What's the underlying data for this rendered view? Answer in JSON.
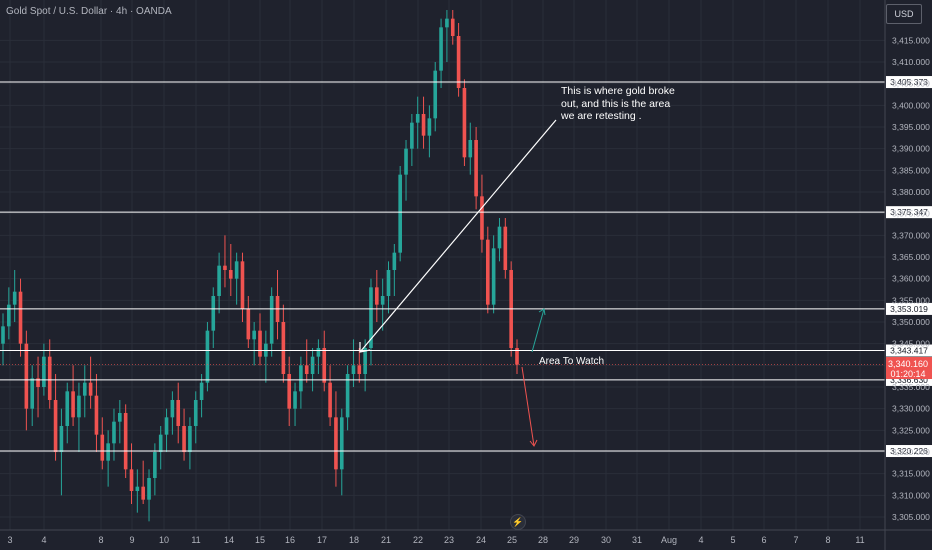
{
  "header": {
    "symbol": "Gold Spot / U.S. Dollar · 4h · OANDA",
    "currency": "USD"
  },
  "colors": {
    "background": "#1f222d",
    "up": "#26a69a",
    "down": "#ef5350",
    "level_line": "#ffffff",
    "grid": "#2a2e39",
    "axis_text": "#b2b5be"
  },
  "annotations": {
    "breakout_note": "This is where gold broke out, and this is the area we are retesting .",
    "area_label": "Area To Watch"
  },
  "live_price": {
    "price": "3,340.160",
    "countdown": "01:20:14"
  },
  "chart_data": {
    "type": "candlestick",
    "ylim": [
      3302,
      3422
    ],
    "y_ticks": [
      3305,
      3310,
      3315,
      3320,
      3325,
      3330,
      3335,
      3340,
      3345,
      3350,
      3355,
      3360,
      3365,
      3370,
      3375,
      3380,
      3385,
      3390,
      3395,
      3400,
      3405,
      3410,
      3415
    ],
    "x_ticks": [
      "3",
      "4",
      "8",
      "9",
      "10",
      "11",
      "14",
      "15",
      "16",
      "17",
      "18",
      "21",
      "22",
      "23",
      "24",
      "25",
      "28",
      "29",
      "30",
      "31",
      "Aug",
      "4",
      "5",
      "6",
      "7",
      "8",
      "11"
    ],
    "horizontal_levels": [
      {
        "label": "3,405.373",
        "value": 3405.373
      },
      {
        "label": "3,375.347",
        "value": 3375.347
      },
      {
        "label": "3,353.019",
        "value": 3353.019
      },
      {
        "label": "3,343.417",
        "value": 3343.417
      },
      {
        "label": "3,336.630",
        "value": 3336.63
      },
      {
        "label": "3,320.226",
        "value": 3320.226
      }
    ],
    "candles": [
      [
        3345,
        3352,
        3340,
        3349
      ],
      [
        3349,
        3358,
        3346,
        3354
      ],
      [
        3354,
        3362,
        3350,
        3357
      ],
      [
        3357,
        3360,
        3342,
        3345
      ],
      [
        3345,
        3348,
        3325,
        3330
      ],
      [
        3330,
        3340,
        3326,
        3337
      ],
      [
        3337,
        3342,
        3328,
        3335
      ],
      [
        3335,
        3345,
        3333,
        3342
      ],
      [
        3342,
        3346,
        3330,
        3332
      ],
      [
        3332,
        3338,
        3318,
        3320
      ],
      [
        3320,
        3330,
        3310,
        3326
      ],
      [
        3326,
        3336,
        3322,
        3334
      ],
      [
        3334,
        3340,
        3326,
        3328
      ],
      [
        3328,
        3336,
        3320,
        3333
      ],
      [
        3333,
        3340,
        3328,
        3336
      ],
      [
        3336,
        3342,
        3330,
        3333
      ],
      [
        3333,
        3338,
        3320,
        3324
      ],
      [
        3324,
        3328,
        3316,
        3318
      ],
      [
        3318,
        3325,
        3312,
        3322
      ],
      [
        3322,
        3330,
        3318,
        3327
      ],
      [
        3327,
        3332,
        3322,
        3329
      ],
      [
        3329,
        3331,
        3314,
        3316
      ],
      [
        3316,
        3322,
        3308,
        3311
      ],
      [
        3311,
        3316,
        3306,
        3312
      ],
      [
        3312,
        3318,
        3308,
        3309
      ],
      [
        3309,
        3316,
        3304,
        3314
      ],
      [
        3314,
        3322,
        3310,
        3320
      ],
      [
        3320,
        3326,
        3316,
        3324
      ],
      [
        3324,
        3330,
        3320,
        3328
      ],
      [
        3328,
        3334,
        3324,
        3332
      ],
      [
        3332,
        3336,
        3322,
        3326
      ],
      [
        3326,
        3330,
        3318,
        3320
      ],
      [
        3320,
        3328,
        3316,
        3326
      ],
      [
        3326,
        3334,
        3322,
        3332
      ],
      [
        3332,
        3338,
        3328,
        3336
      ],
      [
        3336,
        3350,
        3334,
        3348
      ],
      [
        3348,
        3358,
        3344,
        3356
      ],
      [
        3356,
        3366,
        3352,
        3363
      ],
      [
        3363,
        3370,
        3358,
        3362
      ],
      [
        3362,
        3368,
        3356,
        3360
      ],
      [
        3360,
        3366,
        3354,
        3364
      ],
      [
        3364,
        3366,
        3350,
        3353
      ],
      [
        3353,
        3356,
        3344,
        3346
      ],
      [
        3346,
        3350,
        3340,
        3348
      ],
      [
        3348,
        3352,
        3340,
        3342
      ],
      [
        3342,
        3348,
        3336,
        3345
      ],
      [
        3345,
        3358,
        3342,
        3356
      ],
      [
        3356,
        3362,
        3346,
        3350
      ],
      [
        3350,
        3354,
        3336,
        3338
      ],
      [
        3338,
        3342,
        3326,
        3330
      ],
      [
        3330,
        3336,
        3326,
        3334
      ],
      [
        3334,
        3342,
        3330,
        3340
      ],
      [
        3340,
        3346,
        3336,
        3338
      ],
      [
        3338,
        3344,
        3334,
        3342
      ],
      [
        3342,
        3346,
        3338,
        3344
      ],
      [
        3344,
        3348,
        3334,
        3336
      ],
      [
        3336,
        3340,
        3326,
        3328
      ],
      [
        3328,
        3334,
        3312,
        3316
      ],
      [
        3316,
        3330,
        3310,
        3328
      ],
      [
        3328,
        3340,
        3325,
        3338
      ],
      [
        3338,
        3346,
        3335,
        3340
      ],
      [
        3340,
        3344,
        3336,
        3338
      ],
      [
        3338,
        3346,
        3334,
        3344
      ],
      [
        3344,
        3360,
        3340,
        3358
      ],
      [
        3358,
        3362,
        3350,
        3354
      ],
      [
        3354,
        3360,
        3348,
        3356
      ],
      [
        3356,
        3364,
        3352,
        3362
      ],
      [
        3362,
        3368,
        3356,
        3366
      ],
      [
        3366,
        3386,
        3364,
        3384
      ],
      [
        3384,
        3392,
        3378,
        3390
      ],
      [
        3390,
        3398,
        3386,
        3396
      ],
      [
        3396,
        3402,
        3390,
        3398
      ],
      [
        3398,
        3402,
        3390,
        3393
      ],
      [
        3393,
        3400,
        3388,
        3397
      ],
      [
        3397,
        3410,
        3394,
        3408
      ],
      [
        3408,
        3420,
        3404,
        3418
      ],
      [
        3418,
        3422,
        3410,
        3420
      ],
      [
        3420,
        3422,
        3414,
        3416
      ],
      [
        3416,
        3419,
        3402,
        3404
      ],
      [
        3404,
        3406,
        3386,
        3388
      ],
      [
        3388,
        3396,
        3384,
        3392
      ],
      [
        3392,
        3395,
        3376,
        3379
      ],
      [
        3379,
        3384,
        3366,
        3369
      ],
      [
        3369,
        3372,
        3352,
        3354
      ],
      [
        3354,
        3370,
        3352,
        3367
      ],
      [
        3367,
        3374,
        3364,
        3372
      ],
      [
        3372,
        3374,
        3360,
        3362
      ],
      [
        3362,
        3364,
        3342,
        3344
      ],
      [
        3344,
        3346,
        3338,
        3340.16
      ]
    ]
  }
}
